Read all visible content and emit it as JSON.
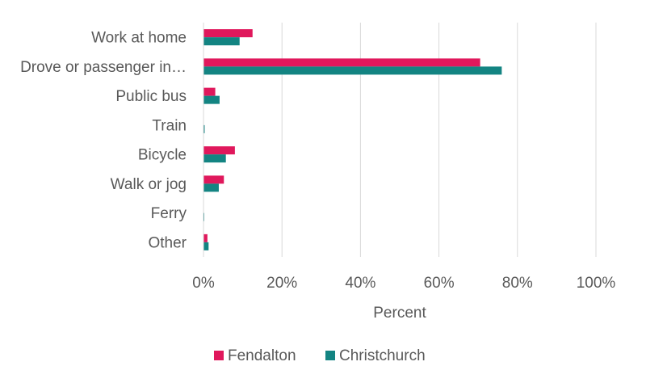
{
  "chart_data": {
    "type": "bar",
    "orientation": "horizontal",
    "categories": [
      "Work at home",
      "Drove or passenger in…",
      "Public bus",
      "Train",
      "Bicycle",
      "Walk or jog",
      "Ferry",
      "Other"
    ],
    "series": [
      {
        "name": "Fendalton",
        "color": "#e0185c",
        "values": [
          12.5,
          70.5,
          3.0,
          0.0,
          8.0,
          5.2,
          0.0,
          1.0
        ]
      },
      {
        "name": "Christchurch",
        "color": "#138482",
        "values": [
          9.2,
          76.0,
          4.1,
          0.3,
          5.7,
          3.9,
          0.2,
          1.3
        ]
      }
    ],
    "xlabel": "Percent",
    "ylabel": "",
    "xlim": [
      0,
      100
    ],
    "xticks": [
      "0%",
      "20%",
      "40%",
      "60%",
      "80%",
      "100%"
    ],
    "grid": "vertical",
    "legend_position": "bottom"
  }
}
